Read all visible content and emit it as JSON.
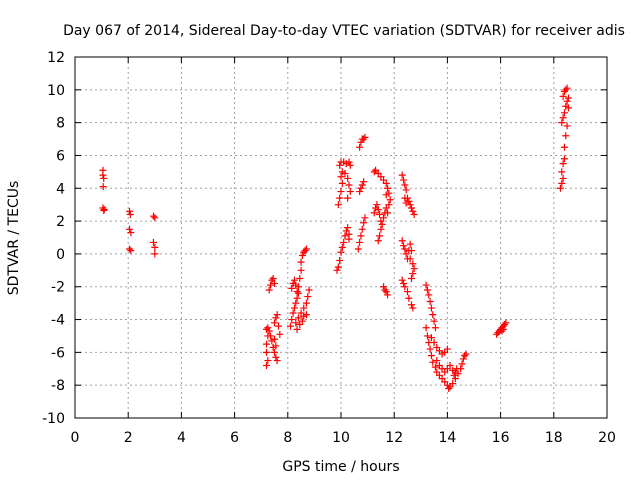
{
  "chart_data": {
    "type": "scatter",
    "title": "Day 067 of 2014, Sidereal Day-to-day VTEC variation (SDTVAR) for receiver adis",
    "xlabel": "GPS time / hours",
    "ylabel": "SDTVAR / TECUs",
    "xlim": [
      0,
      20
    ],
    "ylim": [
      -10,
      12
    ],
    "xticks": [
      0,
      2,
      4,
      6,
      8,
      10,
      12,
      14,
      16,
      18,
      20
    ],
    "yticks": [
      -10,
      -8,
      -6,
      -4,
      -2,
      0,
      2,
      4,
      6,
      8,
      10,
      12
    ],
    "grid": true,
    "marker": "+",
    "color": "#ff0000",
    "series": [
      {
        "name": "SDTVAR",
        "points": [
          [
            1.05,
            5.1
          ],
          [
            1.05,
            4.8
          ],
          [
            1.08,
            4.6
          ],
          [
            1.06,
            4.1
          ],
          [
            1.05,
            2.8
          ],
          [
            1.08,
            2.65
          ],
          [
            1.1,
            2.7
          ],
          [
            2.05,
            2.6
          ],
          [
            2.08,
            2.4
          ],
          [
            2.05,
            1.5
          ],
          [
            2.1,
            1.3
          ],
          [
            2.05,
            0.3
          ],
          [
            2.1,
            0.2
          ],
          [
            2.95,
            2.3
          ],
          [
            3.0,
            2.2
          ],
          [
            2.95,
            0.7
          ],
          [
            3.0,
            0.4
          ],
          [
            3.0,
            0.0
          ],
          [
            7.2,
            -6.8
          ],
          [
            7.25,
            -6.5
          ],
          [
            7.2,
            -6.0
          ],
          [
            7.2,
            -5.5
          ],
          [
            7.25,
            -5.0
          ],
          [
            7.2,
            -4.6
          ],
          [
            7.25,
            -4.5
          ],
          [
            7.3,
            -4.7
          ],
          [
            7.35,
            -5.0
          ],
          [
            7.4,
            -5.3
          ],
          [
            7.45,
            -5.7
          ],
          [
            7.5,
            -6.0
          ],
          [
            7.55,
            -6.3
          ],
          [
            7.6,
            -6.5
          ],
          [
            7.3,
            -2.2
          ],
          [
            7.35,
            -1.9
          ],
          [
            7.4,
            -1.6
          ],
          [
            7.45,
            -1.5
          ],
          [
            7.5,
            -1.8
          ],
          [
            7.5,
            -4.2
          ],
          [
            7.55,
            -3.9
          ],
          [
            7.6,
            -3.7
          ],
          [
            7.65,
            -4.4
          ],
          [
            7.7,
            -4.9
          ],
          [
            7.55,
            -5.6
          ],
          [
            7.5,
            -5.2
          ],
          [
            8.1,
            -4.4
          ],
          [
            8.15,
            -4.0
          ],
          [
            8.2,
            -3.6
          ],
          [
            8.25,
            -3.3
          ],
          [
            8.3,
            -3.0
          ],
          [
            8.35,
            -2.7
          ],
          [
            8.4,
            -2.4
          ],
          [
            8.15,
            -2.1
          ],
          [
            8.2,
            -1.8
          ],
          [
            8.25,
            -1.6
          ],
          [
            8.3,
            -1.9
          ],
          [
            8.35,
            -2.3
          ],
          [
            8.4,
            -2.0
          ],
          [
            8.45,
            -1.5
          ],
          [
            8.5,
            -1.0
          ],
          [
            8.5,
            -0.5
          ],
          [
            8.55,
            -0.1
          ],
          [
            8.6,
            0.1
          ],
          [
            8.65,
            0.2
          ],
          [
            8.7,
            0.3
          ],
          [
            8.3,
            -4.2
          ],
          [
            8.4,
            -3.9
          ],
          [
            8.5,
            -3.6
          ],
          [
            8.6,
            -3.3
          ],
          [
            8.7,
            -3.0
          ],
          [
            8.75,
            -2.6
          ],
          [
            8.8,
            -2.2
          ],
          [
            8.35,
            -4.6
          ],
          [
            8.45,
            -4.3
          ],
          [
            8.55,
            -4.1
          ],
          [
            8.6,
            -3.8
          ],
          [
            8.7,
            -3.7
          ],
          [
            9.85,
            -1.0
          ],
          [
            9.9,
            -0.8
          ],
          [
            9.95,
            -0.4
          ],
          [
            10.0,
            0.1
          ],
          [
            10.05,
            0.4
          ],
          [
            10.1,
            0.7
          ],
          [
            10.15,
            1.1
          ],
          [
            10.2,
            1.4
          ],
          [
            10.25,
            1.6
          ],
          [
            10.3,
            1.2
          ],
          [
            10.3,
            0.9
          ],
          [
            9.9,
            3.0
          ],
          [
            9.95,
            3.4
          ],
          [
            10.0,
            3.8
          ],
          [
            10.05,
            4.3
          ],
          [
            10.0,
            4.7
          ],
          [
            10.05,
            5.0
          ],
          [
            9.95,
            5.4
          ],
          [
            10.0,
            5.6
          ],
          [
            10.1,
            5.6
          ],
          [
            10.2,
            5.5
          ],
          [
            10.3,
            5.6
          ],
          [
            10.35,
            5.4
          ],
          [
            10.15,
            4.9
          ],
          [
            10.25,
            4.6
          ],
          [
            10.3,
            4.2
          ],
          [
            10.35,
            3.8
          ],
          [
            10.25,
            3.4
          ],
          [
            10.65,
            0.3
          ],
          [
            10.7,
            0.7
          ],
          [
            10.75,
            1.1
          ],
          [
            10.8,
            1.5
          ],
          [
            10.85,
            1.9
          ],
          [
            10.9,
            2.2
          ],
          [
            10.7,
            3.8
          ],
          [
            10.75,
            4.0
          ],
          [
            10.8,
            4.2
          ],
          [
            10.85,
            4.4
          ],
          [
            10.7,
            6.5
          ],
          [
            10.75,
            6.8
          ],
          [
            10.8,
            7.0
          ],
          [
            10.85,
            7.0
          ],
          [
            10.9,
            7.1
          ],
          [
            11.25,
            2.5
          ],
          [
            11.3,
            2.8
          ],
          [
            11.35,
            3.0
          ],
          [
            11.4,
            2.7
          ],
          [
            11.45,
            2.4
          ],
          [
            11.5,
            2.0
          ],
          [
            11.5,
            1.5
          ],
          [
            11.45,
            1.1
          ],
          [
            11.4,
            0.8
          ],
          [
            11.55,
            1.8
          ],
          [
            11.6,
            2.2
          ],
          [
            11.65,
            2.5
          ],
          [
            11.7,
            2.8
          ],
          [
            11.75,
            2.5
          ],
          [
            11.25,
            5.0
          ],
          [
            11.3,
            5.1
          ],
          [
            11.4,
            4.9
          ],
          [
            11.5,
            4.7
          ],
          [
            11.6,
            4.5
          ],
          [
            11.7,
            4.3
          ],
          [
            11.75,
            4.0
          ],
          [
            11.8,
            3.7
          ],
          [
            11.85,
            3.3
          ],
          [
            11.8,
            3.0
          ],
          [
            11.7,
            3.6
          ],
          [
            11.6,
            -2.0
          ],
          [
            11.65,
            -2.2
          ],
          [
            11.7,
            -2.3
          ],
          [
            11.75,
            -2.5
          ],
          [
            12.3,
            4.8
          ],
          [
            12.35,
            4.5
          ],
          [
            12.4,
            4.2
          ],
          [
            12.45,
            3.9
          ],
          [
            12.4,
            3.4
          ],
          [
            12.45,
            3.1
          ],
          [
            12.5,
            3.4
          ],
          [
            12.55,
            3.2
          ],
          [
            12.6,
            3.0
          ],
          [
            12.65,
            2.8
          ],
          [
            12.7,
            2.6
          ],
          [
            12.75,
            2.4
          ],
          [
            12.3,
            0.8
          ],
          [
            12.35,
            0.5
          ],
          [
            12.4,
            0.3
          ],
          [
            12.45,
            0.0
          ],
          [
            12.5,
            -0.3
          ],
          [
            12.55,
            0.2
          ],
          [
            12.6,
            0.6
          ],
          [
            12.65,
            0.2
          ],
          [
            12.6,
            -0.3
          ],
          [
            12.7,
            -0.6
          ],
          [
            12.75,
            -0.9
          ],
          [
            12.7,
            -1.2
          ],
          [
            12.65,
            -1.5
          ],
          [
            12.3,
            -1.6
          ],
          [
            12.35,
            -1.8
          ],
          [
            12.4,
            -2.0
          ],
          [
            12.5,
            -2.3
          ],
          [
            12.55,
            -2.7
          ],
          [
            12.65,
            -3.1
          ],
          [
            12.7,
            -3.3
          ],
          [
            13.2,
            -1.9
          ],
          [
            13.25,
            -2.2
          ],
          [
            13.3,
            -2.5
          ],
          [
            13.35,
            -2.9
          ],
          [
            13.4,
            -3.3
          ],
          [
            13.45,
            -3.7
          ],
          [
            13.5,
            -4.1
          ],
          [
            13.55,
            -4.5
          ],
          [
            13.2,
            -4.5
          ],
          [
            13.25,
            -5.0
          ],
          [
            13.3,
            -5.4
          ],
          [
            13.35,
            -5.8
          ],
          [
            13.4,
            -6.2
          ],
          [
            13.45,
            -6.6
          ],
          [
            13.55,
            -6.9
          ],
          [
            13.6,
            -7.2
          ],
          [
            13.7,
            -7.4
          ],
          [
            13.8,
            -7.6
          ],
          [
            13.9,
            -7.8
          ],
          [
            14.0,
            -8.0
          ],
          [
            14.05,
            -8.2
          ],
          [
            14.1,
            -8.1
          ],
          [
            14.2,
            -7.9
          ],
          [
            14.3,
            -7.6
          ],
          [
            14.4,
            -7.3
          ],
          [
            14.5,
            -7.0
          ],
          [
            14.55,
            -6.7
          ],
          [
            14.6,
            -6.4
          ],
          [
            14.65,
            -6.2
          ],
          [
            14.7,
            -6.1
          ],
          [
            13.4,
            -5.1
          ],
          [
            13.5,
            -5.4
          ],
          [
            13.6,
            -5.7
          ],
          [
            13.7,
            -5.9
          ],
          [
            13.8,
            -6.1
          ],
          [
            13.9,
            -6.0
          ],
          [
            14.0,
            -5.8
          ],
          [
            13.6,
            -6.5
          ],
          [
            13.7,
            -6.8
          ],
          [
            13.8,
            -7.0
          ],
          [
            13.9,
            -7.2
          ],
          [
            14.0,
            -7.0
          ],
          [
            14.1,
            -6.8
          ],
          [
            14.2,
            -7.1
          ],
          [
            14.25,
            -7.4
          ],
          [
            14.3,
            -7.2
          ],
          [
            14.35,
            -7.0
          ],
          [
            15.85,
            -4.9
          ],
          [
            15.9,
            -4.8
          ],
          [
            15.95,
            -4.7
          ],
          [
            16.0,
            -4.6
          ],
          [
            16.05,
            -4.5
          ],
          [
            16.1,
            -4.4
          ],
          [
            16.15,
            -4.3
          ],
          [
            16.2,
            -4.2
          ],
          [
            16.05,
            -4.7
          ],
          [
            16.1,
            -4.6
          ],
          [
            18.25,
            4.0
          ],
          [
            18.3,
            4.3
          ],
          [
            18.35,
            4.6
          ],
          [
            18.3,
            5.0
          ],
          [
            18.35,
            5.5
          ],
          [
            18.4,
            5.8
          ],
          [
            18.4,
            6.5
          ],
          [
            18.45,
            7.2
          ],
          [
            18.5,
            7.8
          ],
          [
            18.3,
            8.0
          ],
          [
            18.35,
            8.3
          ],
          [
            18.4,
            8.6
          ],
          [
            18.45,
            9.0
          ],
          [
            18.5,
            9.3
          ],
          [
            18.35,
            9.6
          ],
          [
            18.4,
            9.9
          ],
          [
            18.45,
            10.0
          ],
          [
            18.5,
            10.1
          ],
          [
            18.55,
            9.5
          ],
          [
            18.55,
            8.9
          ]
        ]
      }
    ]
  }
}
